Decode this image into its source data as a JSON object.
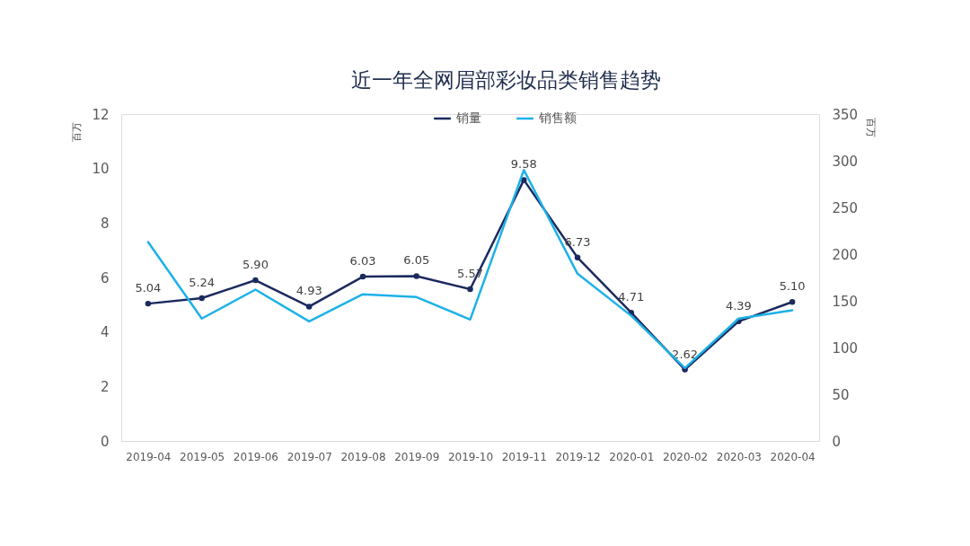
{
  "chart_data": {
    "type": "line",
    "title": "近一年全网眉部彩妆品类销售趋势",
    "ylabel": "百万",
    "y2label": "百万",
    "categories": [
      "2019-04",
      "2019-05",
      "2019-06",
      "2019-07",
      "2019-08",
      "2019-09",
      "2019-10",
      "2019-11",
      "2019-12",
      "2020-01",
      "2020-02",
      "2020-03",
      "2020-04"
    ],
    "series": [
      {
        "name": "销量",
        "color": "#1b2a5e",
        "marker": "circle",
        "values": [
          5.04,
          5.24,
          5.9,
          4.93,
          6.03,
          6.05,
          5.57,
          9.58,
          6.73,
          4.71,
          2.62,
          4.39,
          5.1
        ],
        "value_labels": [
          "5.04",
          "5.24",
          "5.90",
          "4.93",
          "6.03",
          "6.05",
          "5.57",
          "9.58",
          "6.73",
          "4.71",
          "2.62",
          "4.39",
          "5.10"
        ]
      },
      {
        "name": "销售额",
        "color": "#1db1e8",
        "axis": "y2",
        "marker": "none",
        "values": [
          213,
          131,
          162,
          128,
          157,
          154,
          130,
          290,
          179,
          134,
          78,
          131,
          140
        ]
      }
    ],
    "ylim": [
      0,
      12
    ],
    "yticks": [
      0,
      2,
      4,
      6,
      8,
      10,
      12
    ],
    "y2lim": [
      0,
      350
    ],
    "y2ticks": [
      0,
      50,
      100,
      150,
      200,
      250,
      300,
      350
    ],
    "grid": false,
    "legend": "top",
    "line_style": "solid"
  }
}
